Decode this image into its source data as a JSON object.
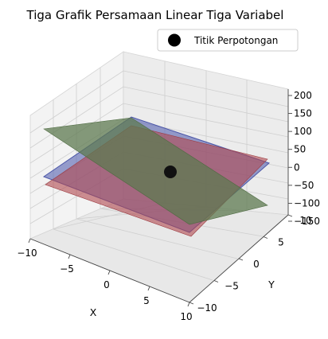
{
  "chart_data": {
    "type": "surface3d",
    "title": "Tiga Grafik Persamaan Linear Tiga Variabel",
    "xlabel": "X",
    "ylabel": "Y",
    "zlabel": "",
    "xlim": [
      -10,
      10
    ],
    "ylim": [
      -10,
      10
    ],
    "zlim": [
      -150,
      200
    ],
    "x_ticks": [
      -10,
      -5,
      0,
      5,
      10
    ],
    "y_ticks": [
      10,
      5,
      0,
      -5,
      -10
    ],
    "z_ticks": [
      200,
      150,
      100,
      50,
      0,
      -50,
      -100,
      -150
    ],
    "grid": true,
    "legend_position": "top-right",
    "legend": [
      {
        "label": "Titik Perpotongan",
        "color": "#000000",
        "marker": "circle"
      }
    ],
    "planes": [
      {
        "color": "#5560b0",
        "opacity": 0.6
      },
      {
        "color": "#b0484f",
        "opacity": 0.6
      },
      {
        "color": "#5e7a50",
        "opacity": 0.75
      }
    ],
    "intersection_point": {
      "x": 0,
      "y": 0,
      "z": 0,
      "color": "#111111"
    }
  }
}
